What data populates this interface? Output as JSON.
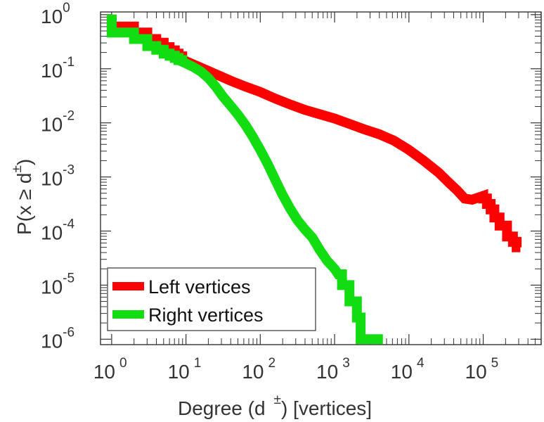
{
  "chart_data": {
    "type": "line",
    "title": "",
    "xlabel": "Degree (d",
    "xlabel_sup": "±",
    "xlabel_suffix": ") [vertices]",
    "ylabel": "P(x ≥ d",
    "ylabel_sup": "±",
    "ylabel_suffix": ")",
    "x_scale": "log",
    "y_scale": "log",
    "xlim_exp": [
      -0.15,
      5.78
    ],
    "ylim_exp": [
      -6.1,
      0.05
    ],
    "grid": false,
    "legend_position": "bottom-left",
    "x_tick_labels": [
      {
        "base": "10",
        "exp": "0"
      },
      {
        "base": "10",
        "exp": "1"
      },
      {
        "base": "10",
        "exp": "2"
      },
      {
        "base": "10",
        "exp": "3"
      },
      {
        "base": "10",
        "exp": "4"
      },
      {
        "base": "10",
        "exp": "5"
      }
    ],
    "y_tick_labels": [
      {
        "base": "10",
        "exp": "0"
      },
      {
        "base": "10",
        "exp": "-1"
      },
      {
        "base": "10",
        "exp": "-2"
      },
      {
        "base": "10",
        "exp": "-3"
      },
      {
        "base": "10",
        "exp": "-4"
      },
      {
        "base": "10",
        "exp": "-5"
      },
      {
        "base": "10",
        "exp": "-6"
      }
    ],
    "series": [
      {
        "name": "Left vertices",
        "color": "#ff0000",
        "points": [
          [
            0,
            0
          ],
          [
            0,
            -0.22
          ],
          [
            0.3,
            -0.22
          ],
          [
            0.3,
            -0.33
          ],
          [
            0.48,
            -0.33
          ],
          [
            0.48,
            -0.45
          ],
          [
            0.6,
            -0.45
          ],
          [
            0.6,
            -0.52
          ],
          [
            0.7,
            -0.52
          ],
          [
            0.7,
            -0.6
          ],
          [
            0.78,
            -0.6
          ],
          [
            0.78,
            -0.66
          ],
          [
            0.85,
            -0.66
          ],
          [
            0.85,
            -0.72
          ],
          [
            0.9,
            -0.72
          ],
          [
            0.9,
            -0.77
          ],
          [
            0.95,
            -0.77
          ],
          [
            0.95,
            -0.82
          ],
          [
            1.0,
            -0.86
          ],
          [
            1.2,
            -0.98
          ],
          [
            1.4,
            -1.1
          ],
          [
            1.6,
            -1.22
          ],
          [
            1.8,
            -1.33
          ],
          [
            2.0,
            -1.43
          ],
          [
            2.2,
            -1.55
          ],
          [
            2.4,
            -1.66
          ],
          [
            2.6,
            -1.76
          ],
          [
            2.8,
            -1.84
          ],
          [
            3.0,
            -1.92
          ],
          [
            3.2,
            -2.02
          ],
          [
            3.4,
            -2.12
          ],
          [
            3.6,
            -2.21
          ],
          [
            3.8,
            -2.33
          ],
          [
            4.0,
            -2.5
          ],
          [
            4.2,
            -2.7
          ],
          [
            4.4,
            -2.92
          ],
          [
            4.55,
            -3.12
          ],
          [
            4.65,
            -3.25
          ],
          [
            4.75,
            -3.4
          ],
          [
            4.85,
            -3.42
          ],
          [
            5.0,
            -3.35
          ],
          [
            5.0,
            -3.4
          ],
          [
            5.05,
            -3.4
          ],
          [
            5.05,
            -3.5
          ],
          [
            5.1,
            -3.5
          ],
          [
            5.1,
            -3.6
          ],
          [
            5.15,
            -3.6
          ],
          [
            5.15,
            -3.75
          ],
          [
            5.22,
            -3.75
          ],
          [
            5.22,
            -3.9
          ],
          [
            5.32,
            -3.9
          ],
          [
            5.32,
            -4.1
          ],
          [
            5.4,
            -4.1
          ],
          [
            5.4,
            -4.2
          ],
          [
            5.45,
            -4.2
          ],
          [
            5.45,
            -4.3
          ],
          [
            5.5,
            -4.3
          ]
        ]
      },
      {
        "name": "Right vertices",
        "color": "#11dd11",
        "points": [
          [
            0,
            0
          ],
          [
            0,
            -0.33
          ],
          [
            0.3,
            -0.33
          ],
          [
            0.3,
            -0.45
          ],
          [
            0.48,
            -0.45
          ],
          [
            0.48,
            -0.58
          ],
          [
            0.6,
            -0.58
          ],
          [
            0.6,
            -0.65
          ],
          [
            0.7,
            -0.65
          ],
          [
            0.7,
            -0.72
          ],
          [
            0.78,
            -0.72
          ],
          [
            0.78,
            -0.76
          ],
          [
            0.85,
            -0.76
          ],
          [
            0.85,
            -0.8
          ],
          [
            0.9,
            -0.8
          ],
          [
            0.9,
            -0.84
          ],
          [
            0.95,
            -0.84
          ],
          [
            0.95,
            -0.87
          ],
          [
            1.0,
            -0.9
          ],
          [
            1.1,
            -0.97
          ],
          [
            1.2,
            -1.05
          ],
          [
            1.3,
            -1.17
          ],
          [
            1.4,
            -1.33
          ],
          [
            1.5,
            -1.52
          ],
          [
            1.6,
            -1.68
          ],
          [
            1.7,
            -1.85
          ],
          [
            1.8,
            -2.04
          ],
          [
            1.9,
            -2.26
          ],
          [
            2.0,
            -2.5
          ],
          [
            2.1,
            -2.76
          ],
          [
            2.2,
            -3.05
          ],
          [
            2.3,
            -3.33
          ],
          [
            2.4,
            -3.58
          ],
          [
            2.5,
            -3.8
          ],
          [
            2.6,
            -3.97
          ],
          [
            2.7,
            -4.12
          ],
          [
            2.8,
            -4.35
          ],
          [
            2.9,
            -4.55
          ],
          [
            3.0,
            -4.7
          ],
          [
            3.05,
            -4.8
          ],
          [
            3.1,
            -4.8
          ],
          [
            3.1,
            -5.0
          ],
          [
            3.2,
            -5.0
          ],
          [
            3.2,
            -5.3
          ],
          [
            3.3,
            -5.3
          ],
          [
            3.3,
            -5.6
          ],
          [
            3.35,
            -5.6
          ],
          [
            3.35,
            -6.0
          ],
          [
            3.65,
            -6.0
          ]
        ]
      }
    ]
  }
}
